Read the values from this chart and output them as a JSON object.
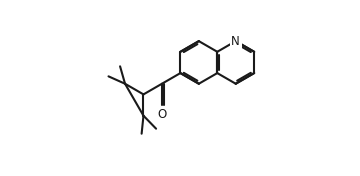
{
  "bg_color": "#ffffff",
  "line_color": "#1a1a1a",
  "line_width": 1.5,
  "figsize": [
    3.6,
    1.76
  ],
  "dpi": 100,
  "xlim": [
    -2.0,
    9.5
  ],
  "ylim": [
    -2.5,
    5.5
  ]
}
